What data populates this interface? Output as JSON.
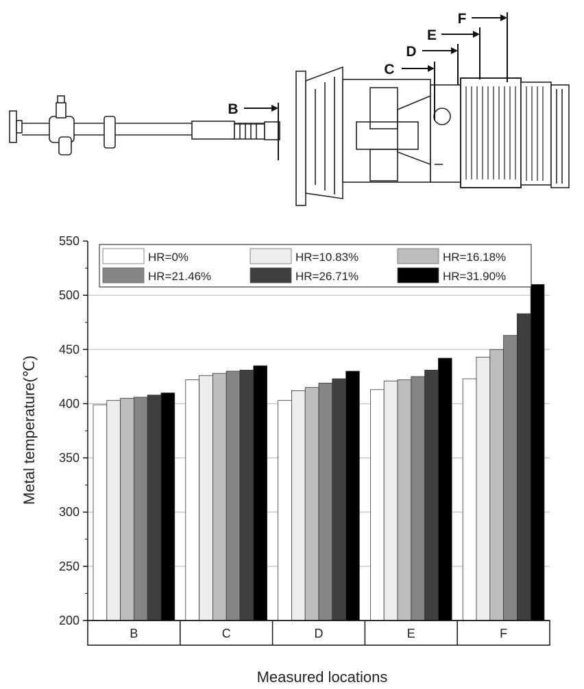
{
  "diagram": {
    "markers": [
      "B",
      "C",
      "D",
      "E",
      "F"
    ]
  },
  "chart_data": {
    "type": "bar",
    "xlabel": "Measured locations",
    "ylabel": "Metal temperature(℃)",
    "ylim": [
      200,
      550
    ],
    "yticks": [
      200,
      250,
      300,
      350,
      400,
      450,
      500,
      550
    ],
    "grid": true,
    "legend_position": "top",
    "categories": [
      "B",
      "C",
      "D",
      "E",
      "F"
    ],
    "series": [
      {
        "name": "HR=0%",
        "color": "#ffffff",
        "values": [
          399,
          422,
          403,
          413,
          423
        ]
      },
      {
        "name": "HR=10.83%",
        "color": "#ededed",
        "values": [
          403,
          426,
          412,
          421,
          443
        ]
      },
      {
        "name": "HR=16.18%",
        "color": "#bdbdbd",
        "values": [
          405,
          428,
          415,
          422,
          450
        ]
      },
      {
        "name": "HR=21.46%",
        "color": "#858585",
        "values": [
          406,
          430,
          419,
          425,
          463
        ]
      },
      {
        "name": "HR=26.71%",
        "color": "#3f3f3f",
        "values": [
          408,
          431,
          423,
          431,
          483
        ]
      },
      {
        "name": "HR=31.90%",
        "color": "#000000",
        "values": [
          410,
          435,
          430,
          442,
          510
        ]
      }
    ]
  }
}
